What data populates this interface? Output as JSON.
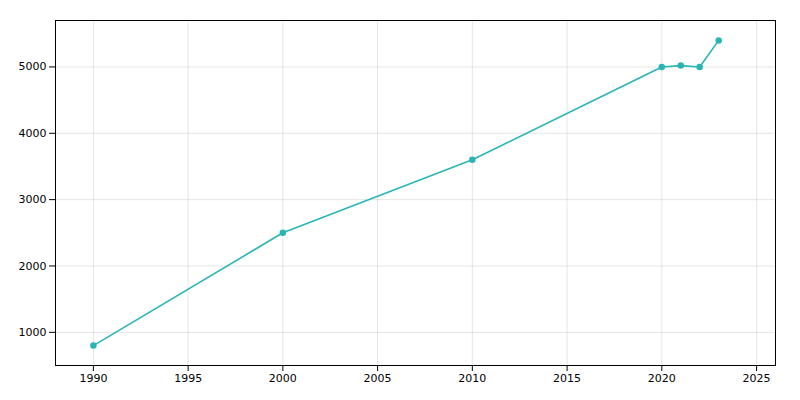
{
  "chart_data": {
    "type": "line",
    "x": [
      1990,
      2000,
      2010,
      2020,
      2021,
      2022,
      2023
    ],
    "values": [
      800,
      2500,
      3600,
      5000,
      5020,
      5000,
      5400
    ],
    "color": "#2ab5b5",
    "marker": "circle",
    "xlim": [
      1988,
      2026
    ],
    "ylim": [
      500,
      5700
    ],
    "xticks": [
      1990,
      1995,
      2000,
      2005,
      2010,
      2015,
      2020,
      2025
    ],
    "yticks": [
      1000,
      2000,
      3000,
      4000,
      5000
    ],
    "grid": true
  }
}
